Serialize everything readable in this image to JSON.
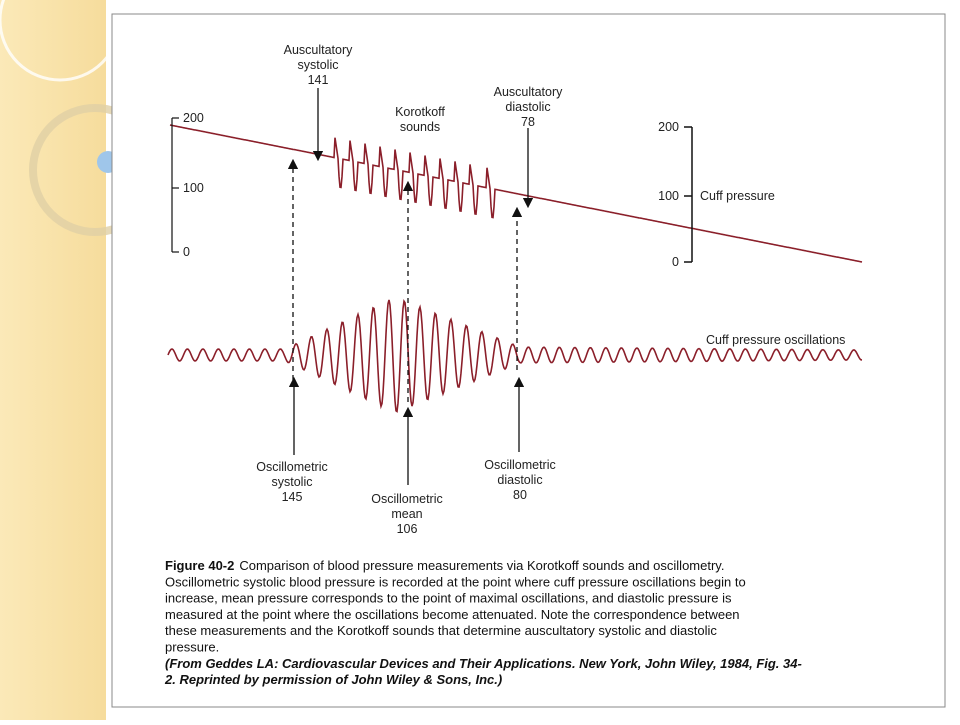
{
  "figure": {
    "annotations": {
      "auscultatory_systolic": [
        "Auscultatory",
        "systolic",
        "141"
      ],
      "korotkoff_sounds": [
        "Korotkoff",
        "sounds"
      ],
      "auscultatory_diastolic": [
        "Auscultatory",
        "diastolic",
        "78"
      ],
      "oscillometric_systolic": [
        "Oscillometric",
        "systolic",
        "145"
      ],
      "oscillometric_mean": [
        "Oscillometric",
        "mean",
        "106"
      ],
      "oscillometric_diastolic": [
        "Oscillometric",
        "diastolic",
        "80"
      ]
    },
    "left_scale": [
      "200",
      "100",
      "0"
    ],
    "right_scale": [
      "200",
      "100",
      "0"
    ],
    "cuff_pressure": "Cuff pressure",
    "cuff_pressure_oscillations": "Cuff pressure oscillations",
    "caption": {
      "label": "Figure 40-2",
      "lines": [
        "Comparison of blood pressure measurements via Korotkoff sounds and oscillometry.",
        "Oscillometric systolic blood pressure is recorded at the point where cuff pressure oscillations begin to",
        "increase, mean pressure corresponds to the point of maximal oscillations, and diastolic pressure is",
        "measured at the point where the oscillations become attenuated. Note the correspondence between",
        "these measurements and the Korotkoff sounds that determine auscultatory systolic and diastolic",
        "pressure."
      ],
      "source": [
        "(From Geddes LA: Cardiovascular Devices and Their Applications. New York, John Wiley, 1984, Fig. 34-",
        "2. Reprinted by permission of John Wiley & Sons, Inc.)"
      ]
    }
  }
}
